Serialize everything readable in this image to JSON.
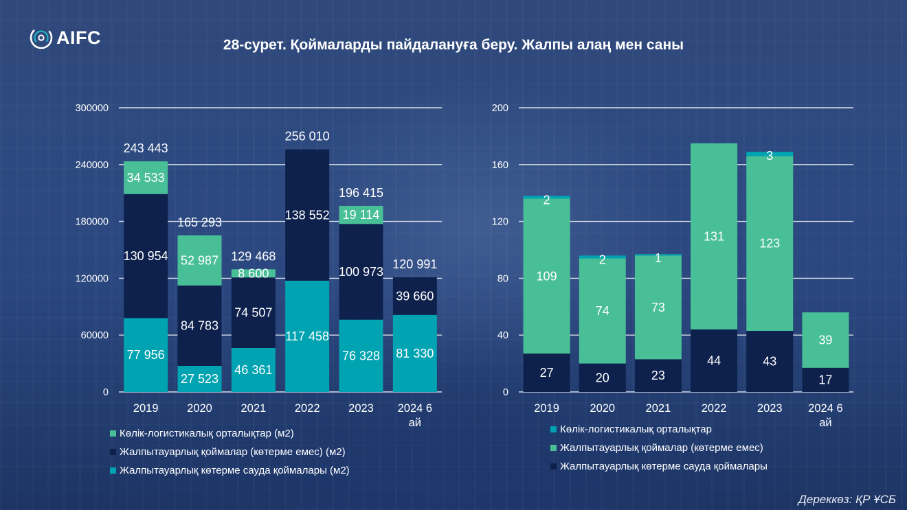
{
  "header": {
    "logo_text": "AIFC",
    "title": "28-сурет. Қоймаларды пайдалануға беру. Жалпы алаң мен саны"
  },
  "colors": {
    "teal_light": "#00a3b1",
    "navy": "#0e214d",
    "green": "#49bf97"
  },
  "chart_data": [
    {
      "type": "bar",
      "stacked": true,
      "categories": [
        "2019",
        "2020",
        "2021",
        "2022",
        "2023",
        "2024 6 ай"
      ],
      "series": [
        {
          "name": "Жалпытауарлық көтерме сауда қоймалары (м2)",
          "color": "#00a3b1",
          "values": [
            77956,
            27523,
            46361,
            117458,
            76328,
            81330
          ],
          "labels": [
            "77 956",
            "27 523",
            "46 361",
            "117 458",
            "76 328",
            "81 330"
          ]
        },
        {
          "name": "Жалпытауарлық қоймалар (көтерме емес) (м2)",
          "color": "#0e214d",
          "values": [
            130954,
            84783,
            74507,
            138552,
            100973,
            39660
          ],
          "labels": [
            "130 954",
            "84 783",
            "74 507",
            "138 552",
            "100 973",
            "39 660"
          ]
        },
        {
          "name": "Көлік-логистикалық орталықтар (м2)",
          "color": "#49bf97",
          "values": [
            34533,
            52987,
            8600,
            0,
            19114,
            0
          ],
          "labels": [
            "34 533",
            "52 987",
            "8 600",
            "",
            "19 114",
            ""
          ]
        }
      ],
      "totals": [
        "243 443",
        "165 293",
        "129 468",
        "256 010",
        "196 415",
        "120 991"
      ],
      "ylim": [
        0,
        300000
      ],
      "yticks": [
        "0",
        "60000",
        "120000",
        "180000",
        "240000",
        "300000"
      ],
      "grid": true,
      "legend": {
        "position": "bottom-left",
        "entries": [
          {
            "label": "Көлік-логистикалық орталықтар (м2)",
            "color": "#49bf97"
          },
          {
            "label": "Жалпытауарлық қоймалар (көтерме емес) (м2)",
            "color": "#0e214d"
          },
          {
            "label": "Жалпытауарлық көтерме сауда қоймалары (м2)",
            "color": "#00a3b1"
          }
        ]
      }
    },
    {
      "type": "bar",
      "stacked": true,
      "categories": [
        "2019",
        "2020",
        "2021",
        "2022",
        "2023",
        "2024 6 ай"
      ],
      "series": [
        {
          "name": "Жалпытауарлық көтерме сауда қоймалары",
          "color": "#0e214d",
          "values": [
            27,
            20,
            23,
            44,
            43,
            17
          ],
          "labels": [
            "27",
            "20",
            "23",
            "44",
            "43",
            "17"
          ]
        },
        {
          "name": "Жалпытауарлық қоймалар (көтерме емес)",
          "color": "#49bf97",
          "values": [
            109,
            74,
            73,
            131,
            123,
            39
          ],
          "labels": [
            "109",
            "74",
            "73",
            "131",
            "123",
            "39"
          ]
        },
        {
          "name": "Көлік-логистикалық орталықтар",
          "color": "#00a3b1",
          "values": [
            2,
            2,
            1,
            0,
            3,
            0
          ],
          "labels": [
            "2",
            "2",
            "1",
            "",
            "3",
            ""
          ]
        }
      ],
      "ylim": [
        0,
        200
      ],
      "yticks": [
        "0",
        "40",
        "80",
        "120",
        "160",
        "200"
      ],
      "grid": true,
      "legend": {
        "position": "bottom-left",
        "entries": [
          {
            "label": "Көлік-логистикалық орталықтар",
            "color": "#00a3b1"
          },
          {
            "label": "Жалпытауарлық қоймалар (көтерме емес)",
            "color": "#49bf97"
          },
          {
            "label": "Жалпытауарлық көтерме сауда қоймалары",
            "color": "#0e214d"
          }
        ]
      }
    }
  ],
  "footer": {
    "source": "Дереккөз: ҚР ҰСБ"
  }
}
